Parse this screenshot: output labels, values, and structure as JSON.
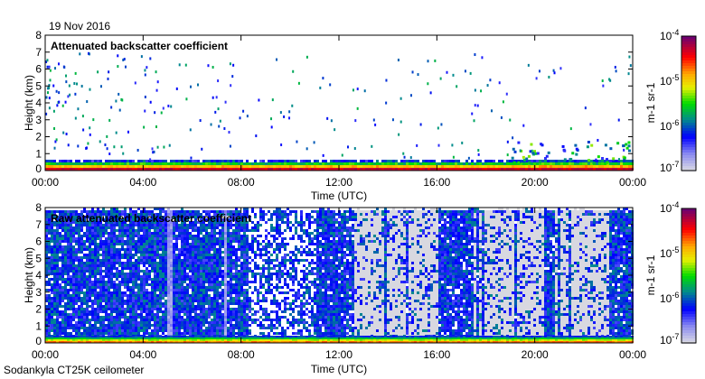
{
  "date": "19 Nov 2016",
  "footer": "Sodankyla CT25K ceilometer",
  "colors": {
    "axis": "#000000",
    "background": "#ffffff",
    "no_signal": "#d8d8e0"
  },
  "chart_data": [
    {
      "type": "heatmap",
      "title": "Attenuated backscatter coefficient",
      "xlabel": "Time (UTC)",
      "ylabel": "Height (km)",
      "xticks": [
        "00:00",
        "04:00",
        "08:00",
        "12:00",
        "16:00",
        "20:00",
        "00:00"
      ],
      "yticks": [
        "0",
        "1",
        "2",
        "3",
        "4",
        "5",
        "6",
        "7",
        "8"
      ],
      "xlim_hours": [
        0,
        24
      ],
      "ylim_km": [
        0,
        8
      ],
      "colorbar": {
        "label": "m-1 sr-1",
        "label_main": "m",
        "sup1": "-1",
        "label_unit2": " sr",
        "sup2": "-1",
        "ticks": [
          {
            "base": "10",
            "exp": "-4"
          },
          {
            "base": "10",
            "exp": "-5"
          },
          {
            "base": "10",
            "exp": "-6"
          },
          {
            "base": "10",
            "exp": "-7"
          }
        ],
        "range": [
          1e-07,
          0.0001
        ],
        "scale": "log"
      },
      "features": {
        "boundary_layer_top_km": 0.5,
        "sparse_returns_up_to_km": 7,
        "low_cloud_after_hours": 19,
        "low_cloud_top_km": 1.8
      }
    },
    {
      "type": "heatmap",
      "title": "Raw attenuated backscatter coefficient",
      "xlabel": "Time (UTC)",
      "ylabel": "Height (km)",
      "xticks": [
        "00:00",
        "04:00",
        "08:00",
        "12:00",
        "16:00",
        "20:00",
        "00:00"
      ],
      "yticks": [
        "0",
        "1",
        "2",
        "3",
        "4",
        "5",
        "6",
        "7",
        "8"
      ],
      "xlim_hours": [
        0,
        24
      ],
      "ylim_km": [
        0,
        8
      ],
      "colorbar": {
        "label": "m-1 sr-1",
        "label_main": "m",
        "sup1": "-1",
        "label_unit2": " sr",
        "sup2": "-1",
        "ticks": [
          {
            "base": "10",
            "exp": "-4"
          },
          {
            "base": "10",
            "exp": "-5"
          },
          {
            "base": "10",
            "exp": "-6"
          },
          {
            "base": "10",
            "exp": "-7"
          }
        ],
        "range": [
          1e-07,
          0.0001
        ],
        "scale": "log"
      },
      "features": {
        "noise_top_km": 7.5,
        "low_noise_periods_hours": [
          [
            12.6,
            16.0
          ],
          [
            17.5,
            20.3
          ],
          [
            20.8,
            23.0
          ]
        ]
      }
    }
  ]
}
